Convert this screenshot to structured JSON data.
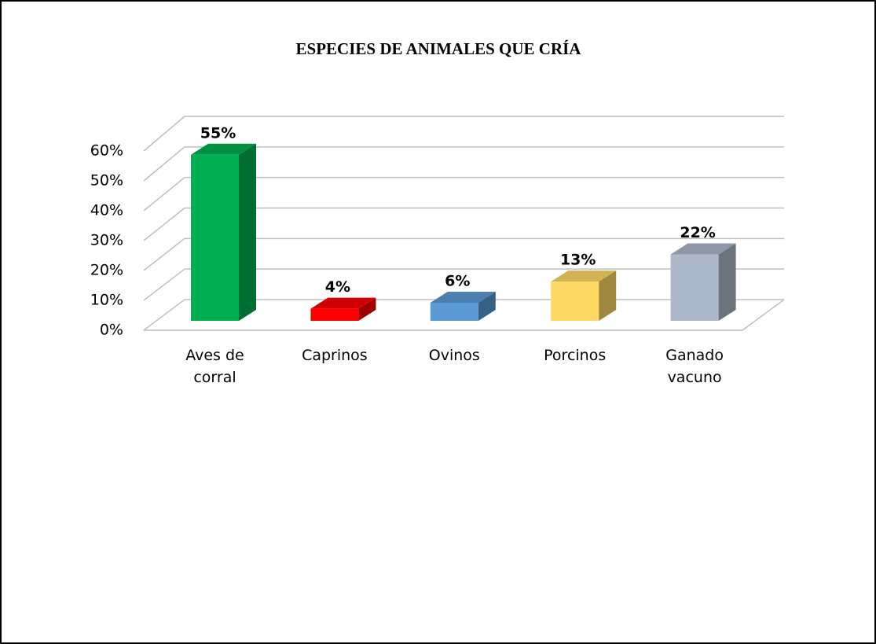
{
  "chart_data": {
    "type": "bar3d",
    "title": "ESPECIES DE ANIMALES QUE CRÍA",
    "categories": [
      "Aves de corral",
      "Caprinos",
      "Ovinos",
      "Porcinos",
      "Ganado vacuno"
    ],
    "values": [
      55,
      4,
      6,
      13,
      22
    ],
    "value_labels": [
      "55%",
      "4%",
      "6%",
      "13%",
      "22%"
    ],
    "colors": [
      "#00b050",
      "#ff0000",
      "#5b9bd5",
      "#ffd966",
      "#adb9ca"
    ],
    "ylim": [
      0,
      60
    ],
    "yticks": [
      {
        "value": 0,
        "label": "0%"
      },
      {
        "value": 10,
        "label": "10%"
      },
      {
        "value": 20,
        "label": "20%"
      },
      {
        "value": 30,
        "label": "30%"
      },
      {
        "value": 40,
        "label": "40%"
      },
      {
        "value": 50,
        "label": "50%"
      },
      {
        "value": 60,
        "label": "60%"
      }
    ],
    "grid": true
  }
}
